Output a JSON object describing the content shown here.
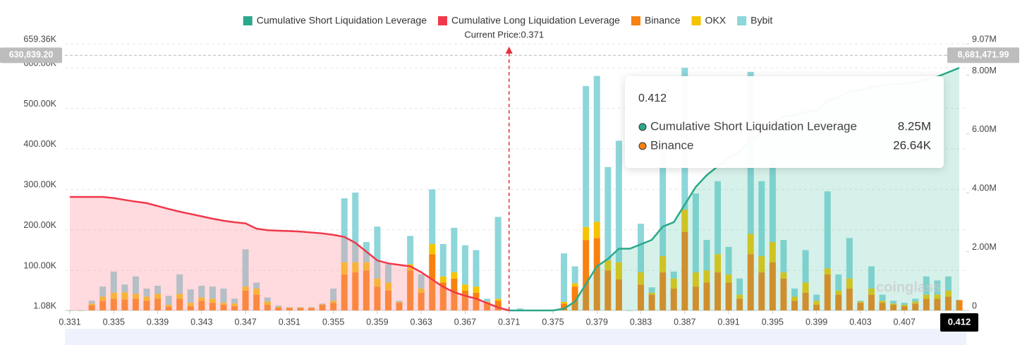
{
  "chart_data": {
    "type": "bar",
    "current_price": {
      "value": 0.371,
      "label": "Current Price:0.371"
    },
    "x": [
      0.331,
      0.332,
      0.333,
      0.334,
      0.335,
      0.336,
      0.337,
      0.338,
      0.339,
      0.34,
      0.341,
      0.342,
      0.343,
      0.344,
      0.345,
      0.346,
      0.347,
      0.348,
      0.349,
      0.35,
      0.351,
      0.352,
      0.353,
      0.354,
      0.355,
      0.356,
      0.357,
      0.358,
      0.359,
      0.36,
      0.361,
      0.362,
      0.363,
      0.364,
      0.365,
      0.366,
      0.367,
      0.368,
      0.369,
      0.37,
      0.371,
      0.372,
      0.373,
      0.374,
      0.375,
      0.376,
      0.377,
      0.378,
      0.379,
      0.38,
      0.381,
      0.382,
      0.383,
      0.384,
      0.385,
      0.386,
      0.387,
      0.388,
      0.389,
      0.39,
      0.391,
      0.392,
      0.393,
      0.394,
      0.395,
      0.396,
      0.397,
      0.398,
      0.399,
      0.4,
      0.401,
      0.402,
      0.403,
      0.404,
      0.405,
      0.406,
      0.407,
      0.408,
      0.409,
      0.41,
      0.411,
      0.412
    ],
    "xlim": [
      0.331,
      0.412
    ],
    "xticks": [
      0.331,
      0.335,
      0.339,
      0.343,
      0.347,
      0.351,
      0.355,
      0.359,
      0.363,
      0.367,
      0.371,
      0.375,
      0.379,
      0.383,
      0.387,
      0.391,
      0.395,
      0.399,
      0.403,
      0.407
    ],
    "ylim": [
      1080,
      659360
    ],
    "yticks": [
      {
        "value": 1080,
        "label": "1.08K"
      },
      {
        "value": 100000,
        "label": "100.00K"
      },
      {
        "value": 200000,
        "label": "200.00K"
      },
      {
        "value": 300000,
        "label": "300.00K"
      },
      {
        "value": 400000,
        "label": "400.00K"
      },
      {
        "value": 500000,
        "label": "500.00K"
      },
      {
        "value": 600000,
        "label": "600.00K"
      },
      {
        "value": 659360,
        "label": "659.36K"
      }
    ],
    "y2lim": [
      0,
      9070000
    ],
    "y2ticks": [
      {
        "value": 0,
        "label": "0"
      },
      {
        "value": 2000000,
        "label": "2.00M"
      },
      {
        "value": 4000000,
        "label": "4.00M"
      },
      {
        "value": 6000000,
        "label": "6.00M"
      },
      {
        "value": 8000000,
        "label": "8.00M"
      },
      {
        "value": 9070000,
        "label": "9.07M"
      }
    ],
    "grid": true,
    "legend": "top",
    "series": [
      {
        "name": "Cumulative Short Liquidation Leverage",
        "type": "line",
        "axis": "y2",
        "color": "#2aa88a",
        "fill": "rgba(70,190,160,0.22)",
        "values": [
          null,
          null,
          null,
          null,
          null,
          null,
          null,
          null,
          null,
          null,
          null,
          null,
          null,
          null,
          null,
          null,
          null,
          null,
          null,
          null,
          null,
          null,
          null,
          null,
          null,
          null,
          null,
          null,
          null,
          null,
          null,
          null,
          null,
          null,
          null,
          null,
          null,
          null,
          null,
          null,
          0,
          0,
          0,
          0,
          0,
          60000,
          300000,
          900000,
          1500000,
          1750000,
          2100000,
          2100000,
          2250000,
          2400000,
          2850000,
          3000000,
          3600000,
          4200000,
          4600000,
          4900000,
          5200000,
          5400000,
          5800000,
          6050000,
          6400000,
          6600000,
          6650000,
          6750000,
          6800000,
          7150000,
          7250000,
          7450000,
          7500000,
          7600000,
          7650000,
          7700000,
          7720000,
          7760000,
          7860000,
          7950000,
          8100000,
          8250000
        ]
      },
      {
        "name": "Cumulative Long Liquidation Leverage",
        "type": "line",
        "axis": "y2",
        "color": "#f0384b",
        "fill": "rgba(255,150,160,0.35)",
        "values": [
          3860000,
          3860000,
          3860000,
          3860000,
          3820000,
          3760000,
          3700000,
          3650000,
          3550000,
          3450000,
          3360000,
          3280000,
          3200000,
          3120000,
          3050000,
          3000000,
          2960000,
          2780000,
          2730000,
          2710000,
          2700000,
          2680000,
          2650000,
          2620000,
          2570000,
          2500000,
          2300000,
          2000000,
          1700000,
          1600000,
          1550000,
          1500000,
          1300000,
          1050000,
          800000,
          620000,
          500000,
          400000,
          250000,
          100000,
          0,
          null,
          null,
          null,
          null,
          null,
          null,
          null,
          null,
          null,
          null,
          null,
          null,
          null,
          null,
          null,
          null,
          null,
          null,
          null,
          null,
          null,
          null,
          null,
          null,
          null,
          null,
          null,
          null,
          null,
          null,
          null,
          null,
          null,
          null,
          null,
          null,
          null,
          null,
          null,
          null,
          null
        ]
      },
      {
        "name": "Binance",
        "type": "bar",
        "color": "#f7820f",
        "values": [
          0,
          0,
          14000,
          25000,
          30000,
          28000,
          30000,
          25000,
          30000,
          10000,
          30000,
          12000,
          25000,
          20000,
          15000,
          12000,
          50000,
          40000,
          15000,
          8000,
          7000,
          7000,
          7000,
          15000,
          20000,
          90000,
          95000,
          100000,
          60000,
          50000,
          20000,
          100000,
          45000,
          140000,
          70000,
          80000,
          50000,
          45000,
          20000,
          25000,
          0,
          2000,
          0,
          0,
          0,
          18000,
          60000,
          175000,
          180000,
          100000,
          78000,
          0,
          65000,
          40000,
          95000,
          55000,
          195000,
          60000,
          70000,
          95000,
          70000,
          30000,
          140000,
          95000,
          120000,
          80000,
          25000,
          45000,
          15000,
          90000,
          40000,
          55000,
          20000,
          40000,
          20000,
          15000,
          12000,
          18000,
          30000,
          30000,
          35000,
          26640
        ]
      },
      {
        "name": "OKX",
        "type": "bar",
        "color": "#f5c400",
        "values": [
          0,
          0,
          4000,
          10000,
          15000,
          18000,
          12000,
          10000,
          12000,
          5000,
          12000,
          8000,
          8000,
          10000,
          5000,
          6000,
          10000,
          15000,
          8000,
          2000,
          1000,
          1000,
          1000,
          1000,
          5000,
          30000,
          25000,
          20000,
          20000,
          20000,
          2000,
          15000,
          10000,
          25000,
          15000,
          15000,
          15000,
          15000,
          3000,
          5000,
          0,
          1000,
          0,
          0,
          0,
          4000,
          8000,
          32000,
          40000,
          25000,
          42000,
          0,
          30000,
          5000,
          40000,
          25000,
          55000,
          35000,
          30000,
          45000,
          20000,
          10000,
          50000,
          40000,
          50000,
          15000,
          10000,
          25000,
          10000,
          15000,
          10000,
          25000,
          3000,
          15000,
          5000,
          3000,
          3000,
          5000,
          10000,
          10000,
          15000,
          0
        ]
      },
      {
        "name": "Bybit",
        "type": "bar",
        "color": "#8dd6da",
        "values": [
          0,
          0,
          7000,
          25000,
          52000,
          19000,
          43000,
          20000,
          20000,
          22000,
          48000,
          33000,
          29000,
          30000,
          35000,
          12000,
          92000,
          15000,
          10000,
          3000,
          1000,
          1000,
          1000,
          2000,
          30000,
          158000,
          172000,
          50000,
          128000,
          45000,
          3000,
          70000,
          35000,
          135000,
          80000,
          110000,
          97000,
          90000,
          7000,
          202000,
          0,
          3000,
          0,
          0,
          0,
          120000,
          42000,
          348000,
          360000,
          230000,
          300000,
          0,
          120000,
          13000,
          255000,
          17000,
          350000,
          195000,
          75000,
          180000,
          68000,
          40000,
          400000,
          185000,
          200000,
          80000,
          20000,
          80000,
          15000,
          190000,
          40000,
          100000,
          2000,
          55000,
          15000,
          7000,
          5000,
          7000,
          45000,
          35000,
          35000,
          0
        ]
      }
    ],
    "crosshair": {
      "x": 0.412,
      "x_label": "0.412",
      "y": {
        "value": 630839.2,
        "label": "630,839.20"
      },
      "y2": {
        "value": 8681471.99,
        "label": "8,681,471.99"
      }
    },
    "tooltip": {
      "title": "0.412",
      "rows": [
        {
          "name": "Cumulative Short Liquidation Leverage",
          "value": "8.25M",
          "color": "#2aa88a"
        },
        {
          "name": "Binance",
          "value": "26.64K",
          "color": "#f7820f"
        }
      ]
    },
    "watermark": "coinglass"
  }
}
